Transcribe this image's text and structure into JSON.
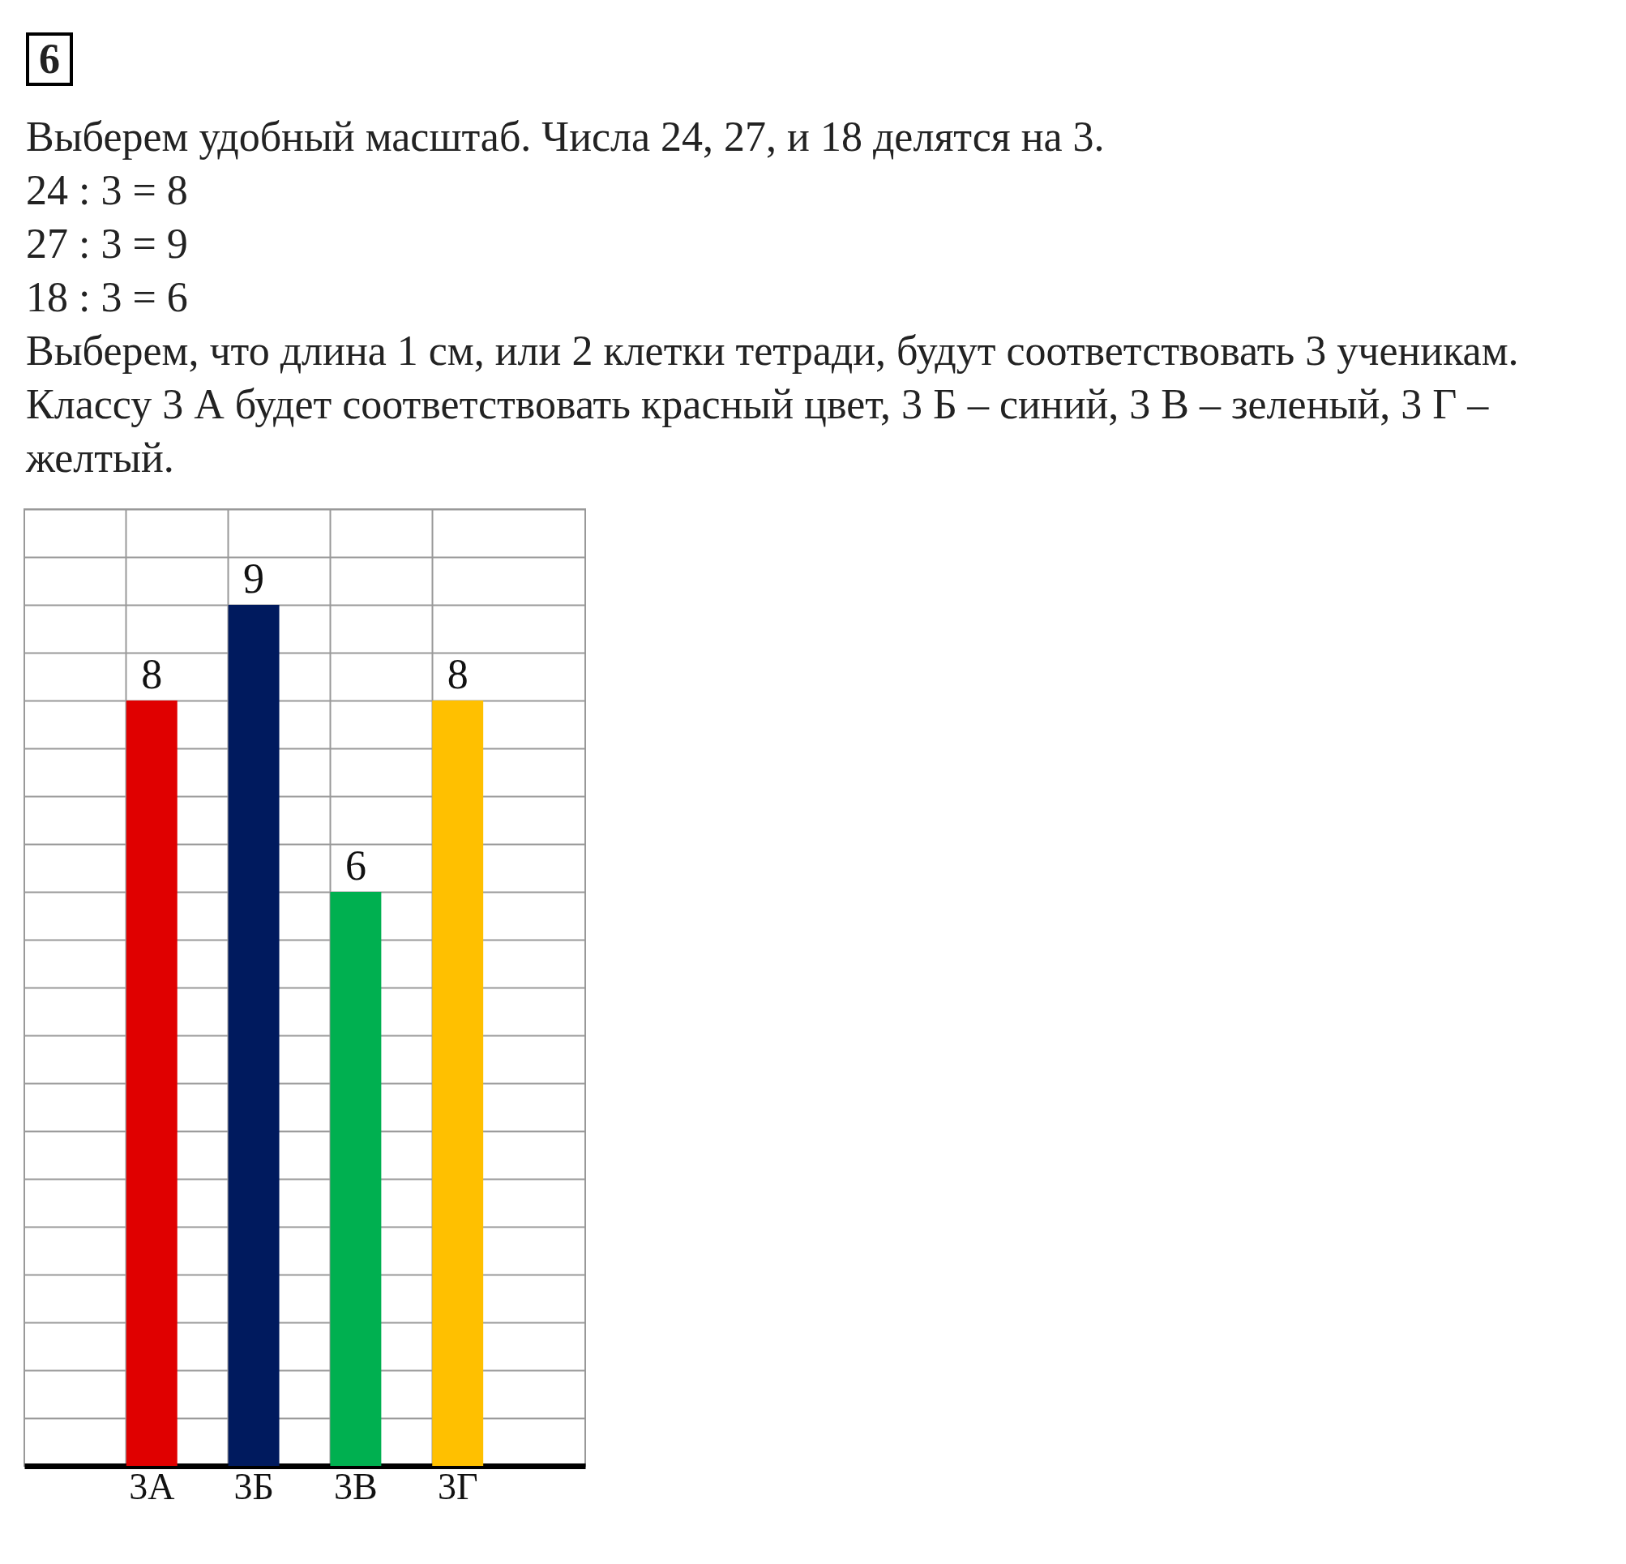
{
  "chart_data": {
    "type": "bar",
    "annotations": [
      "6",
      "Выберем удобный масштаб. Числа 24, 27, и 18 делятся на 3.",
      "24 : 3 = 8",
      "27 : 3 = 9",
      "18 : 3 = 6",
      "Выберем, что длина 1 см, или 2 клетки тетради, будут соответствовать 3 ученикам. Классу 3 А будет соответствовать красный цвет, 3 Б – синий, 3 В – зеленый, 3 Г – желтый."
    ],
    "categories": [
      "3А",
      "3Б",
      "3В",
      "3Г"
    ],
    "values": [
      8,
      9,
      6,
      8
    ],
    "colors": [
      "#e00000",
      "#001a5e",
      "#00b050",
      "#ffc000"
    ],
    "ylim": [
      0,
      10
    ],
    "yticks": [
      {
        "value": 0,
        "label": null
      },
      {
        "value": 0.5,
        "label": null
      },
      {
        "value": 1,
        "label": null
      },
      {
        "value": 1.5,
        "label": null
      },
      {
        "value": 2,
        "label": null
      },
      {
        "value": 2.5,
        "label": null
      },
      {
        "value": 3,
        "label": null
      },
      {
        "value": 3.5,
        "label": null
      },
      {
        "value": 4,
        "label": null
      },
      {
        "value": 4.5,
        "label": null
      },
      {
        "value": 5,
        "label": null
      },
      {
        "value": 5.5,
        "label": null
      },
      {
        "value": 6,
        "label": null
      },
      {
        "value": 6.5,
        "label": null
      },
      {
        "value": 7,
        "label": null
      },
      {
        "value": 7.5,
        "label": null
      },
      {
        "value": 8,
        "label": null
      },
      {
        "value": 8.5,
        "label": null
      },
      {
        "value": 9,
        "label": null
      },
      {
        "value": 9.5,
        "label": null
      },
      {
        "value": 10,
        "label": null
      }
    ],
    "tick_labels": "x",
    "grid": true,
    "data_labels": true
  }
}
